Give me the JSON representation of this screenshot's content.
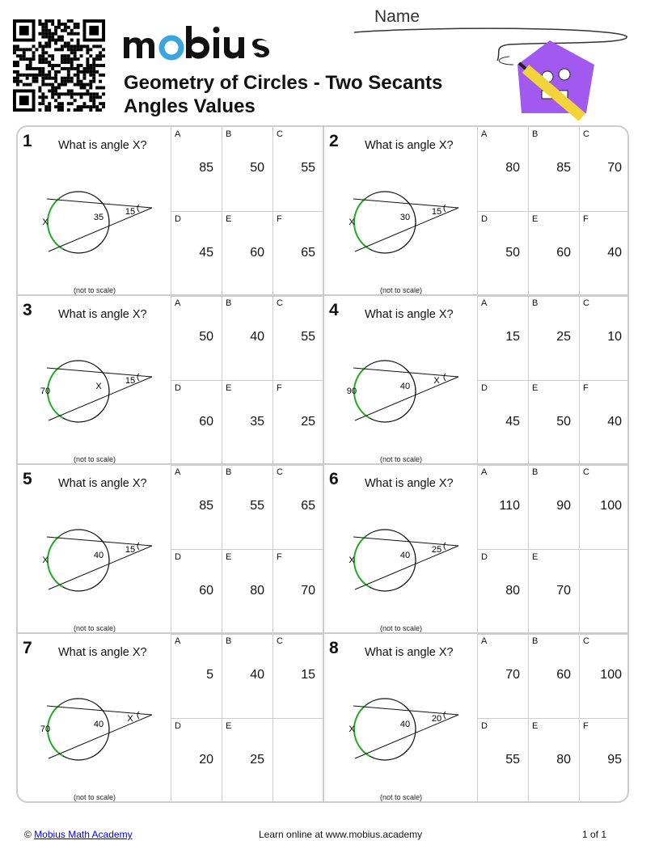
{
  "header": {
    "logo_text": "mobius",
    "title_line1": "Geometry of Circles - Two Secants",
    "title_line2": "Angles Values",
    "name_label": "Name"
  },
  "question": "What is angle X?",
  "not_to_scale": "(not to scale)",
  "colors": {
    "arc": "#22aa22",
    "logo_accent": "#3aa6dd",
    "mascot": "#a259f0"
  },
  "problems": [
    {
      "number": "1",
      "left": "X",
      "inner": "35",
      "vertex": "15",
      "choices": [
        {
          "letter": "A",
          "value": "85"
        },
        {
          "letter": "B",
          "value": "50"
        },
        {
          "letter": "C",
          "value": "55"
        },
        {
          "letter": "D",
          "value": "45"
        },
        {
          "letter": "E",
          "value": "60"
        },
        {
          "letter": "F",
          "value": "65"
        }
      ]
    },
    {
      "number": "2",
      "left": "X",
      "inner": "30",
      "vertex": "15",
      "choices": [
        {
          "letter": "A",
          "value": "80"
        },
        {
          "letter": "B",
          "value": "85"
        },
        {
          "letter": "C",
          "value": "70"
        },
        {
          "letter": "D",
          "value": "50"
        },
        {
          "letter": "E",
          "value": "60"
        },
        {
          "letter": "F",
          "value": "40"
        }
      ]
    },
    {
      "number": "3",
      "left": "70",
      "inner": "X",
      "vertex": "15",
      "choices": [
        {
          "letter": "A",
          "value": "50"
        },
        {
          "letter": "B",
          "value": "40"
        },
        {
          "letter": "C",
          "value": "55"
        },
        {
          "letter": "D",
          "value": "60"
        },
        {
          "letter": "E",
          "value": "35"
        },
        {
          "letter": "F",
          "value": "25"
        }
      ]
    },
    {
      "number": "4",
      "left": "90",
      "inner": "40",
      "vertex": "X",
      "choices": [
        {
          "letter": "A",
          "value": "15"
        },
        {
          "letter": "B",
          "value": "25"
        },
        {
          "letter": "C",
          "value": "10"
        },
        {
          "letter": "D",
          "value": "45"
        },
        {
          "letter": "E",
          "value": "50"
        },
        {
          "letter": "F",
          "value": "40"
        }
      ]
    },
    {
      "number": "5",
      "left": "X",
      "inner": "40",
      "vertex": "15",
      "choices": [
        {
          "letter": "A",
          "value": "85"
        },
        {
          "letter": "B",
          "value": "55"
        },
        {
          "letter": "C",
          "value": "65"
        },
        {
          "letter": "D",
          "value": "60"
        },
        {
          "letter": "E",
          "value": "80"
        },
        {
          "letter": "F",
          "value": "70"
        }
      ]
    },
    {
      "number": "6",
      "left": "X",
      "inner": "40",
      "vertex": "25",
      "choices": [
        {
          "letter": "A",
          "value": "110"
        },
        {
          "letter": "B",
          "value": "90"
        },
        {
          "letter": "C",
          "value": "100"
        },
        {
          "letter": "D",
          "value": "80"
        },
        {
          "letter": "E",
          "value": "70"
        },
        {
          "letter": "",
          "value": ""
        }
      ]
    },
    {
      "number": "7",
      "left": "70",
      "inner": "40",
      "vertex": "X",
      "choices": [
        {
          "letter": "A",
          "value": "5"
        },
        {
          "letter": "B",
          "value": "40"
        },
        {
          "letter": "C",
          "value": "15"
        },
        {
          "letter": "D",
          "value": "20"
        },
        {
          "letter": "E",
          "value": "25"
        },
        {
          "letter": "",
          "value": ""
        }
      ]
    },
    {
      "number": "8",
      "left": "X",
      "inner": "40",
      "vertex": "20",
      "choices": [
        {
          "letter": "A",
          "value": "70"
        },
        {
          "letter": "B",
          "value": "60"
        },
        {
          "letter": "C",
          "value": "100"
        },
        {
          "letter": "D",
          "value": "55"
        },
        {
          "letter": "E",
          "value": "80"
        },
        {
          "letter": "F",
          "value": "95"
        }
      ]
    }
  ],
  "footer": {
    "copyright": "©",
    "link": "Mobius Math Academy",
    "center": "Learn online at www.mobius.academy",
    "page": "1 of 1"
  }
}
